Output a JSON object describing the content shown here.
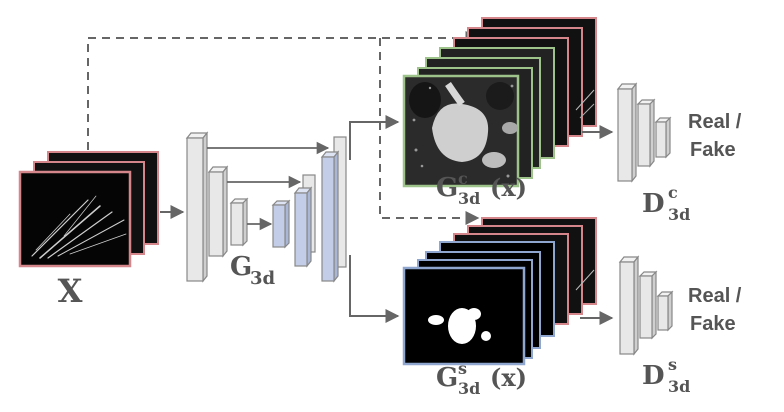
{
  "input_label": "X",
  "generator": {
    "base": "G",
    "sub": "3d"
  },
  "ct_output": {
    "base": "G",
    "sup": "c",
    "sub": "3d",
    "arg": "(x)"
  },
  "seg_output": {
    "base": "G",
    "sup": "s",
    "sub": "3d",
    "arg": "(x)"
  },
  "disc_c": {
    "base": "D",
    "sup": "c",
    "sub": "3d",
    "line1": "Real /",
    "line2": "Fake"
  },
  "disc_s": {
    "base": "D",
    "sup": "s",
    "sub": "3d",
    "line1": "Real /",
    "line2": "Fake"
  },
  "colors": {
    "arrow": "#666666",
    "xray_border": "#d4868a",
    "ct_border": "#9dc28a",
    "seg_border": "#8fa6cf",
    "gen_gray": "#e8e8e8",
    "gen_blue": "#c3cde8",
    "block_stroke": "#888888"
  }
}
